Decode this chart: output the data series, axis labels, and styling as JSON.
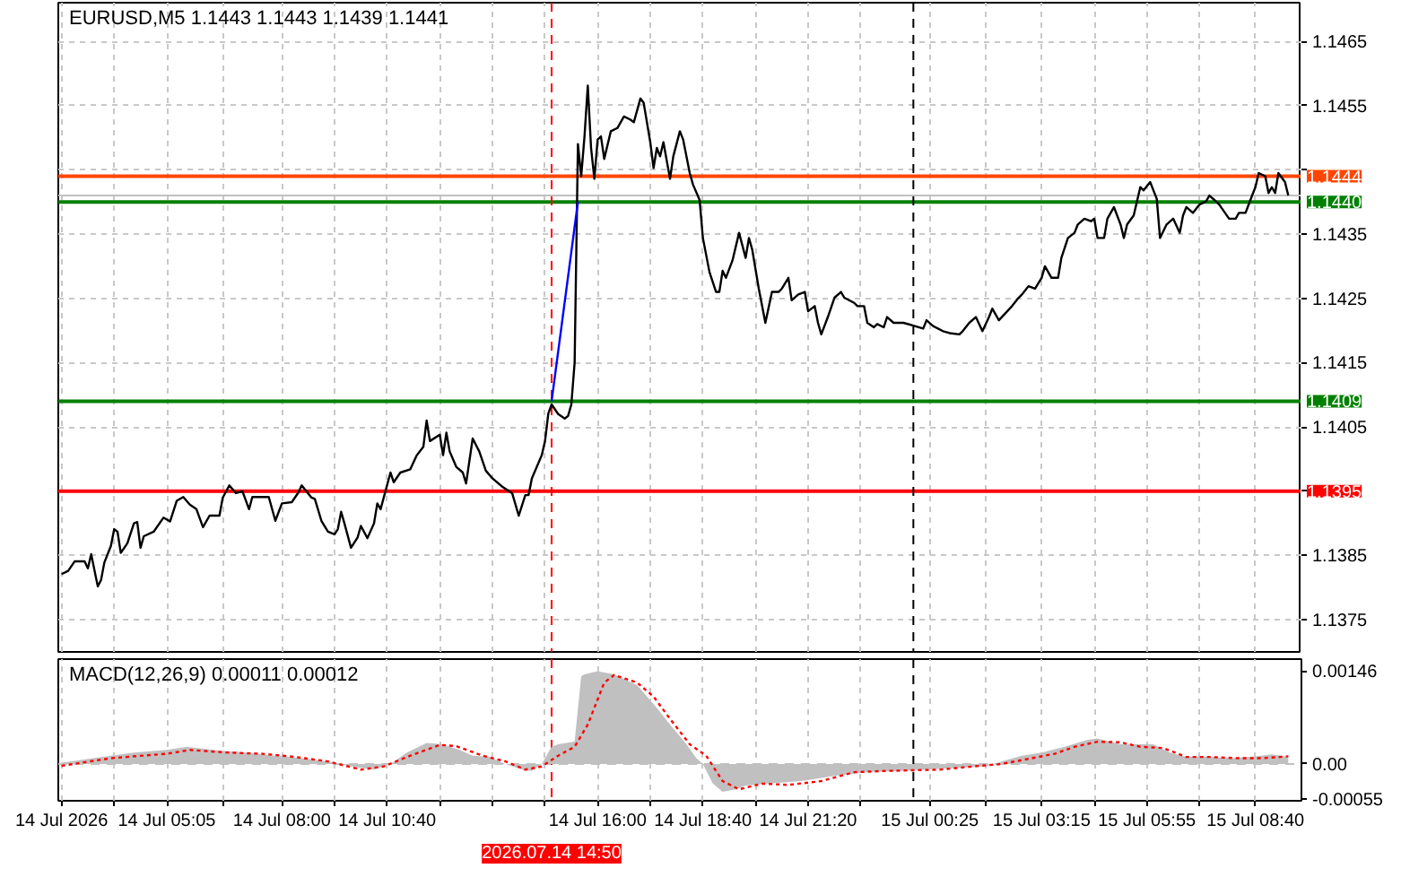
{
  "chart_data": [
    {
      "type": "line",
      "title": "EURUSD,M5 1.1443 1.1443 1.1439 1.1441",
      "series": [
        {
          "color": "#000000",
          "x": [
            "2026-07-14T02:25",
            "2026-07-14T02:35",
            "2026-07-14T02:45",
            "2026-07-14T03:00",
            "2026-07-14T03:05",
            "2026-07-14T03:10",
            "2026-07-14T03:20",
            "2026-07-14T03:25",
            "2026-07-14T03:30",
            "2026-07-14T03:40",
            "2026-07-14T03:45",
            "2026-07-14T03:50",
            "2026-07-14T03:55",
            "2026-07-14T04:05",
            "2026-07-14T04:15",
            "2026-07-14T04:20",
            "2026-07-14T04:25",
            "2026-07-14T04:30",
            "2026-07-14T04:45",
            "2026-07-14T05:00",
            "2026-07-14T05:10",
            "2026-07-14T05:20",
            "2026-07-14T05:30",
            "2026-07-14T05:40",
            "2026-07-14T05:50",
            "2026-07-14T06:00",
            "2026-07-14T06:10",
            "2026-07-14T06:25",
            "2026-07-14T06:30",
            "2026-07-14T06:40",
            "2026-07-14T06:50",
            "2026-07-14T07:00",
            "2026-07-14T07:10",
            "2026-07-14T07:15",
            "2026-07-14T07:40",
            "2026-07-14T07:50",
            "2026-07-14T08:00",
            "2026-07-14T08:15",
            "2026-07-14T08:25",
            "2026-07-14T08:30",
            "2026-07-14T08:45",
            "2026-07-14T08:50",
            "2026-07-14T09:00",
            "2026-07-14T09:10",
            "2026-07-14T09:20",
            "2026-07-14T09:25",
            "2026-07-14T09:30",
            "2026-07-14T09:35",
            "2026-07-14T09:45",
            "2026-07-14T09:55",
            "2026-07-14T10:00",
            "2026-07-14T10:10",
            "2026-07-14T10:20",
            "2026-07-14T10:25",
            "2026-07-14T10:30",
            "2026-07-14T10:45",
            "2026-07-14T10:50",
            "2026-07-14T11:00",
            "2026-07-14T11:15",
            "2026-07-14T11:25",
            "2026-07-14T11:35",
            "2026-07-14T11:40",
            "2026-07-14T11:45",
            "2026-07-14T12:00",
            "2026-07-14T12:05",
            "2026-07-14T12:10",
            "2026-07-14T12:15",
            "2026-07-14T12:25",
            "2026-07-14T12:35",
            "2026-07-14T12:40",
            "2026-07-14T12:50",
            "2026-07-14T13:00",
            "2026-07-14T13:05",
            "2026-07-14T13:10",
            "2026-07-14T13:20",
            "2026-07-14T13:35",
            "2026-07-14T13:50",
            "2026-07-14T14:00",
            "2026-07-14T14:10",
            "2026-07-14T14:15",
            "2026-07-14T14:20",
            "2026-07-14T14:35",
            "2026-07-14T14:40",
            "2026-07-14T14:45",
            "2026-07-14T14:50",
            "2026-07-14T15:00",
            "2026-07-14T15:10",
            "2026-07-14T15:15",
            "2026-07-14T15:20",
            "2026-07-14T15:25",
            "2026-07-14T15:30",
            "2026-07-14T15:35",
            "2026-07-14T15:40",
            "2026-07-14T15:45",
            "2026-07-14T15:50",
            "2026-07-14T15:55",
            "2026-07-14T16:00",
            "2026-07-14T16:05",
            "2026-07-14T16:10",
            "2026-07-14T16:20",
            "2026-07-14T16:30",
            "2026-07-14T16:40",
            "2026-07-14T16:50",
            "2026-07-14T16:55",
            "2026-07-14T17:05",
            "2026-07-14T17:10",
            "2026-07-14T17:20",
            "2026-07-14T17:25",
            "2026-07-14T17:30",
            "2026-07-14T17:35",
            "2026-07-14T17:40",
            "2026-07-14T17:50",
            "2026-07-14T17:55",
            "2026-07-14T18:05",
            "2026-07-14T18:10",
            "2026-07-14T18:20",
            "2026-07-14T18:25",
            "2026-07-14T18:35",
            "2026-07-14T18:40",
            "2026-07-14T18:50",
            "2026-07-14T19:00",
            "2026-07-14T19:05",
            "2026-07-14T19:10",
            "2026-07-14T19:15",
            "2026-07-14T19:25",
            "2026-07-14T19:35",
            "2026-07-14T19:45",
            "2026-07-14T19:50",
            "2026-07-14T19:55",
            "2026-07-14T20:05",
            "2026-07-14T20:15",
            "2026-07-14T20:25",
            "2026-07-14T20:35",
            "2026-07-14T20:40",
            "2026-07-14T20:50",
            "2026-07-14T20:55",
            "2026-07-14T21:05",
            "2026-07-14T21:15",
            "2026-07-14T21:20",
            "2026-07-14T21:30",
            "2026-07-14T21:35",
            "2026-07-14T21:40",
            "2026-07-14T21:50",
            "2026-07-14T22:00",
            "2026-07-14T22:10",
            "2026-07-14T22:15",
            "2026-07-14T22:30",
            "2026-07-14T22:35",
            "2026-07-14T22:45",
            "2026-07-14T22:50",
            "2026-07-14T23:00",
            "2026-07-14T23:05",
            "2026-07-14T23:15",
            "2026-07-14T23:20",
            "2026-07-14T23:30",
            "2026-07-14T23:45",
            "2026-07-15T00:15",
            "2026-07-15T00:20",
            "2026-07-15T00:30",
            "2026-07-15T00:45",
            "2026-07-15T00:55",
            "2026-07-15T01:10",
            "2026-07-15T01:15",
            "2026-07-15T01:25",
            "2026-07-15T01:35",
            "2026-07-15T01:45",
            "2026-07-15T01:55",
            "2026-07-15T02:00",
            "2026-07-15T02:10",
            "2026-07-15T02:30",
            "2026-07-15T02:40",
            "2026-07-15T02:45",
            "2026-07-15T02:55",
            "2026-07-15T03:05",
            "2026-07-15T03:15",
            "2026-07-15T03:20",
            "2026-07-15T03:30",
            "2026-07-15T03:40",
            "2026-07-15T03:45",
            "2026-07-15T03:55",
            "2026-07-15T04:05",
            "2026-07-15T04:10",
            "2026-07-15T04:20",
            "2026-07-15T04:30",
            "2026-07-15T04:35",
            "2026-07-15T04:40",
            "2026-07-15T04:50",
            "2026-07-15T04:55",
            "2026-07-15T05:05",
            "2026-07-15T05:15",
            "2026-07-15T05:20",
            "2026-07-15T05:25",
            "2026-07-15T05:35",
            "2026-07-15T05:40",
            "2026-07-15T05:45",
            "2026-07-15T05:50",
            "2026-07-15T06:00",
            "2026-07-15T06:10",
            "2026-07-15T06:15",
            "2026-07-15T06:25",
            "2026-07-15T06:35",
            "2026-07-15T06:45",
            "2026-07-15T06:50",
            "2026-07-15T06:55",
            "2026-07-15T07:05",
            "2026-07-15T07:15",
            "2026-07-15T07:25",
            "2026-07-15T07:30",
            "2026-07-15T07:40",
            "2026-07-15T07:45",
            "2026-07-15T08:00",
            "2026-07-15T08:10",
            "2026-07-15T08:15",
            "2026-07-15T08:25",
            "2026-07-15T08:35",
            "2026-07-15T08:40",
            "2026-07-15T08:45",
            "2026-07-15T08:55",
            "2026-07-15T09:00",
            "2026-07-15T09:05",
            "2026-07-15T09:10",
            "2026-07-15T09:15",
            "2026-07-15T09:25",
            "2026-07-15T09:30"
          ],
          "values": [
            1.13821,
            1.13826,
            1.13841,
            1.13841,
            1.1383,
            1.13852,
            1.13802,
            1.13812,
            1.13839,
            1.13865,
            1.13891,
            1.13887,
            1.13854,
            1.13869,
            1.139,
            1.13902,
            1.13862,
            1.1388,
            1.13887,
            1.13909,
            1.13903,
            1.13935,
            1.13941,
            1.13929,
            1.13922,
            1.13894,
            1.13912,
            1.13912,
            1.1394,
            1.13959,
            1.13947,
            1.1395,
            1.13922,
            1.13941,
            1.13941,
            1.13904,
            1.13931,
            1.13933,
            1.13948,
            1.13959,
            1.1394,
            1.13938,
            1.13904,
            1.13887,
            1.13883,
            1.13891,
            1.13918,
            1.139,
            1.13862,
            1.13878,
            1.13896,
            1.13877,
            1.139,
            1.13931,
            1.13922,
            1.13979,
            1.13964,
            1.13979,
            1.13984,
            1.14006,
            1.14019,
            1.1406,
            1.14028,
            1.14038,
            1.14006,
            1.14041,
            1.14012,
            1.13988,
            1.13979,
            1.13962,
            1.14032,
            1.14012,
            1.13997,
            1.13982,
            1.1397,
            1.13957,
            1.13947,
            1.13912,
            1.13944,
            1.13944,
            1.1397,
            1.14006,
            1.14028,
            1.14071,
            1.14085,
            1.1407,
            1.14063,
            1.14067,
            1.14085,
            1.1415,
            1.1449,
            1.1444,
            1.14502,
            1.14581,
            1.14484,
            1.14436,
            1.14497,
            1.14502,
            1.14467,
            1.1451,
            1.14515,
            1.14533,
            1.14528,
            1.14524,
            1.14561,
            1.14554,
            1.14493,
            1.14453,
            1.14484,
            1.14471,
            1.14493,
            1.14436,
            1.14471,
            1.1451,
            1.14497,
            1.14445,
            1.14427,
            1.14403,
            1.14344,
            1.14291,
            1.1426,
            1.1426,
            1.14293,
            1.14282,
            1.14309,
            1.14352,
            1.14313,
            1.14344,
            1.14326,
            1.14265,
            1.14212,
            1.1426,
            1.1426,
            1.14265,
            1.14282,
            1.14247,
            1.14256,
            1.1426,
            1.1423,
            1.14238,
            1.14212,
            1.14194,
            1.14221,
            1.14251,
            1.1426,
            1.14251,
            1.14243,
            1.14238,
            1.14238,
            1.14212,
            1.14205,
            1.1421,
            1.14205,
            1.14221,
            1.14212,
            1.14212,
            1.14203,
            1.14216,
            1.14207,
            1.14199,
            1.14196,
            1.14194,
            1.14199,
            1.14212,
            1.14221,
            1.14199,
            1.14221,
            1.14234,
            1.14216,
            1.14238,
            1.14251,
            1.14256,
            1.14269,
            1.14265,
            1.14282,
            1.143,
            1.14282,
            1.14282,
            1.14313,
            1.14344,
            1.14352,
            1.14365,
            1.14374,
            1.1437,
            1.14374,
            1.14344,
            1.14344,
            1.14374,
            1.14392,
            1.14365,
            1.14344,
            1.14365,
            1.14379,
            1.14401,
            1.14423,
            1.14418,
            1.14431,
            1.14405,
            1.14344,
            1.14365,
            1.14374,
            1.14352,
            1.14379,
            1.14392,
            1.14383,
            1.14396,
            1.14401,
            1.1441,
            1.14401,
            1.14396,
            1.14374,
            1.14374,
            1.14383,
            1.14383,
            1.1441,
            1.14423,
            1.14445,
            1.1444,
            1.14414,
            1.14423,
            1.14414,
            1.14445,
            1.14431,
            1.1441
          ]
        },
        {
          "type": "line",
          "color": "#0000ff",
          "x": [
            "2026-07-14T14:50",
            "2026-07-14T15:30"
          ],
          "values": [
            1.1409,
            1.144
          ]
        }
      ],
      "xlim": [
        "2026-07-14T02:20",
        "2026-07-15T09:50"
      ],
      "xticks": [
        {
          "value": "2026-07-14T02:25",
          "label": null
        },
        {
          "value": "2026-07-14T03:45",
          "label": null
        },
        {
          "value": "2026-07-14T05:05",
          "label": null
        },
        {
          "value": "2026-07-14T06:30",
          "label": null
        },
        {
          "value": "2026-07-14T08:00",
          "label": null
        },
        {
          "value": "2026-07-14T09:20",
          "label": null
        },
        {
          "value": "2026-07-14T10:40",
          "label": null
        },
        {
          "value": "2026-07-14T12:00",
          "label": null
        },
        {
          "value": "2026-07-14T13:20",
          "label": null
        },
        {
          "value": "2026-07-14T14:40",
          "label": null
        },
        {
          "value": "2026-07-14T16:00",
          "label": null
        },
        {
          "value": "2026-07-14T17:20",
          "label": null
        },
        {
          "value": "2026-07-14T18:40",
          "label": null
        },
        {
          "value": "2026-07-14T20:00",
          "label": null
        },
        {
          "value": "2026-07-14T21:20",
          "label": null
        },
        {
          "value": "2026-07-14T22:40",
          "label": null
        },
        {
          "value": "2026-07-15T00:25",
          "label": null
        },
        {
          "value": "2026-07-15T01:50",
          "label": null
        },
        {
          "value": "2026-07-15T03:15",
          "label": null
        },
        {
          "value": "2026-07-15T04:35",
          "label": null
        },
        {
          "value": "2026-07-15T05:55",
          "label": null
        },
        {
          "value": "2026-07-15T07:15",
          "label": null
        },
        {
          "value": "2026-07-15T08:40",
          "label": null
        }
      ],
      "ylim": [
        1.137,
        1.1471
      ],
      "yticks": [
        1.1375,
        1.1385,
        {
          "value": 1.1395,
          "label": null
        },
        1.1405,
        1.1415,
        1.1425,
        1.1435,
        {
          "value": 1.1445,
          "label": null
        },
        1.1455,
        1.1465
      ],
      "grid": true,
      "tick_labels": "y",
      "ref_lines": [
        {
          "axis": "y",
          "value": 1.1444,
          "label": "1.1444",
          "color": "#ff4500"
        },
        {
          "axis": "y",
          "value": 1.1441,
          "color": "#c0c0c0"
        },
        {
          "axis": "y",
          "value": 1.144,
          "label": "1.1440",
          "color": "#008000"
        },
        {
          "axis": "y",
          "value": 1.1409,
          "label": "1.1409",
          "color": "#008000"
        },
        {
          "axis": "y",
          "value": 1.1395,
          "label": "1.1395",
          "color": "#ff0000"
        },
        {
          "axis": "x",
          "value": "2026-07-14T14:50",
          "color": "#ff0000",
          "line_style": "dashed"
        },
        {
          "axis": "x",
          "value": "2026-07-15T00:00",
          "color": "#000000",
          "line_style": "dashed"
        }
      ]
    },
    {
      "type": "area",
      "title": "MACD(12,26,9) 0.00011 0.00012",
      "series": [
        {
          "color": "#c0c0c0",
          "x": [
            "2026-07-14T02:25",
            "2026-07-14T03:40",
            "2026-07-14T04:15",
            "2026-07-14T05:05",
            "2026-07-14T05:35",
            "2026-07-14T06:15",
            "2026-07-14T07:05",
            "2026-07-14T07:50",
            "2026-07-14T08:30",
            "2026-07-14T09:10",
            "2026-07-14T09:45",
            "2026-07-14T10:20",
            "2026-07-14T10:45",
            "2026-07-14T11:10",
            "2026-07-14T11:40",
            "2026-07-14T12:05",
            "2026-07-14T12:30",
            "2026-07-14T12:50",
            "2026-07-14T13:15",
            "2026-07-14T13:40",
            "2026-07-14T14:05",
            "2026-07-14T14:20",
            "2026-07-14T14:35",
            "2026-07-14T14:50",
            "2026-07-14T15:00",
            "2026-07-14T15:25",
            "2026-07-14T15:35",
            "2026-07-14T15:40",
            "2026-07-14T16:00",
            "2026-07-14T16:25",
            "2026-07-14T17:00",
            "2026-07-14T17:15",
            "2026-07-14T17:30",
            "2026-07-14T17:50",
            "2026-07-14T18:15",
            "2026-07-14T18:30",
            "2026-07-14T18:40",
            "2026-07-14T18:55",
            "2026-07-14T19:10",
            "2026-07-14T19:30",
            "2026-07-14T19:45",
            "2026-07-14T20:20",
            "2026-07-14T21:10",
            "2026-07-14T22:00",
            "2026-07-14T22:50",
            "2026-07-14T23:40",
            "2026-07-15T00:55",
            "2026-07-15T01:50",
            "2026-07-15T02:15",
            "2026-07-15T02:45",
            "2026-07-15T03:15",
            "2026-07-15T03:50",
            "2026-07-15T04:25",
            "2026-07-15T04:40",
            "2026-07-15T05:15",
            "2026-07-15T05:45",
            "2026-07-15T06:05",
            "2026-07-15T06:30",
            "2026-07-15T06:55",
            "2026-07-15T07:30",
            "2026-07-15T08:05",
            "2026-07-15T08:40",
            "2026-07-15T09:05",
            "2026-07-15T09:30"
          ],
          "values": [
            2e-05,
            0.00013,
            0.00018,
            0.00022,
            0.00027,
            0.00022,
            0.00018,
            0.00013,
            9e-05,
            4e-05,
            -4e-05,
            -9e-05,
            0,
            0.00018,
            0.00033,
            0.00031,
            0.00022,
            0.00013,
            0.00011,
            0,
            -9e-05,
            -0.00011,
            0,
            0.00027,
            0.00031,
            0.00035,
            0.00138,
            0.00141,
            0.00146,
            0.00141,
            0.00124,
            0.00106,
            0.00088,
            0.00062,
            0.00031,
            9e-05,
            0,
            -0.00031,
            -0.00044,
            -0.0004,
            -0.00034,
            -0.00031,
            -0.00027,
            -0.00019,
            -0.00013,
            -0.00011,
            -7e-05,
            -4e-05,
            4e-05,
            0.00013,
            0.00018,
            0.00027,
            0.00038,
            0.0004,
            0.00031,
            0.00031,
            0.00031,
            0.00018,
            0.00011,
            0.00011,
            9e-05,
            0.00012,
            0.00015,
            0.00011
          ]
        },
        {
          "type": "line",
          "color": "#ff0000",
          "line_style": "dotted",
          "x": [
            "2026-07-14T02:25",
            "2026-07-14T03:40",
            "2026-07-14T04:15",
            "2026-07-14T05:05",
            "2026-07-14T05:40",
            "2026-07-14T06:35",
            "2026-07-14T07:30",
            "2026-07-14T08:20",
            "2026-07-14T09:10",
            "2026-07-14T10:00",
            "2026-07-14T10:35",
            "2026-07-14T11:10",
            "2026-07-14T12:00",
            "2026-07-14T12:25",
            "2026-07-14T13:05",
            "2026-07-14T13:40",
            "2026-07-14T14:10",
            "2026-07-14T14:35",
            "2026-07-14T15:00",
            "2026-07-14T15:25",
            "2026-07-14T15:45",
            "2026-07-14T16:10",
            "2026-07-14T16:25",
            "2026-07-14T17:00",
            "2026-07-14T17:25",
            "2026-07-14T17:50",
            "2026-07-14T18:20",
            "2026-07-14T18:45",
            "2026-07-14T19:10",
            "2026-07-14T19:35",
            "2026-07-14T20:10",
            "2026-07-14T20:50",
            "2026-07-14T21:40",
            "2026-07-14T22:30",
            "2026-07-14T23:20",
            "2026-07-15T00:40",
            "2026-07-15T01:30",
            "2026-07-15T02:15",
            "2026-07-15T03:00",
            "2026-07-15T03:35",
            "2026-07-15T04:05",
            "2026-07-15T04:40",
            "2026-07-15T05:15",
            "2026-07-15T05:45",
            "2026-07-15T06:20",
            "2026-07-15T06:55",
            "2026-07-15T07:30",
            "2026-07-15T08:15",
            "2026-07-15T08:50",
            "2026-07-15T09:30"
          ],
          "values": [
            -3e-05,
            9e-05,
            0.00012,
            0.00016,
            0.00022,
            0.00018,
            0.00016,
            0.00011,
            4e-05,
            -9e-05,
            -4e-05,
            0.00011,
            0.0003,
            0.00028,
            0.00013,
            4e-05,
            -9e-05,
            -4e-05,
            0.00013,
            0.00027,
            0.00062,
            0.00128,
            0.0014,
            0.00128,
            0.00106,
            0.00071,
            0.00031,
            0.00013,
            -0.00027,
            -0.0004,
            -0.00031,
            -0.00033,
            -0.00027,
            -0.00013,
            -0.00011,
            -9e-05,
            -4e-05,
            0,
            9e-05,
            0.00016,
            0.00027,
            0.00035,
            0.00034,
            0.00027,
            0.00025,
            0.00011,
            0.00011,
            9e-05,
            9e-05,
            0.00012
          ]
        }
      ],
      "xlim": [
        "2026-07-14T02:20",
        "2026-07-15T09:50"
      ],
      "xticks": [
        {
          "value": "2026-07-14T02:25",
          "label": "14 Jul 2026"
        },
        {
          "value": "2026-07-14T03:45",
          "label": null
        },
        {
          "value": "2026-07-14T05:05",
          "label": "14 Jul 05:05"
        },
        {
          "value": "2026-07-14T06:30",
          "label": null
        },
        {
          "value": "2026-07-14T08:00",
          "label": "14 Jul 08:00"
        },
        {
          "value": "2026-07-14T09:20",
          "label": null
        },
        {
          "value": "2026-07-14T10:40",
          "label": "14 Jul 10:40"
        },
        {
          "value": "2026-07-14T12:00",
          "label": null
        },
        {
          "value": "2026-07-14T13:20",
          "label": null
        },
        {
          "value": "2026-07-14T14:40",
          "label": null
        },
        {
          "value": "2026-07-14T16:00",
          "label": "14 Jul 16:00"
        },
        {
          "value": "2026-07-14T17:20",
          "label": null
        },
        {
          "value": "2026-07-14T18:40",
          "label": "14 Jul 18:40"
        },
        {
          "value": "2026-07-14T20:00",
          "label": null
        },
        {
          "value": "2026-07-14T21:20",
          "label": "14 Jul 21:20"
        },
        {
          "value": "2026-07-14T22:40",
          "label": null
        },
        {
          "value": "2026-07-15T00:25",
          "label": "15 Jul 00:25"
        },
        {
          "value": "2026-07-15T01:50",
          "label": null
        },
        {
          "value": "2026-07-15T03:15",
          "label": "15 Jul 03:15"
        },
        {
          "value": "2026-07-15T04:35",
          "label": null
        },
        {
          "value": "2026-07-15T05:55",
          "label": "15 Jul 05:55"
        },
        {
          "value": "2026-07-15T07:15",
          "label": null
        },
        {
          "value": "2026-07-15T08:40",
          "label": "15 Jul 08:40"
        }
      ],
      "ylim": [
        -0.00058,
        0.00165
      ],
      "yticks": [
        0.00146,
        {
          "value": 0,
          "label": "0.00"
        },
        -0.00055
      ],
      "grid": "x",
      "ref_lines": [
        {
          "axis": "y",
          "value": 0,
          "color": "#c0c0c0",
          "line_style": "dashed"
        },
        {
          "axis": "x",
          "value": "2026-07-14T14:50",
          "label": "2026.07.14 14:50",
          "color": "#ff0000",
          "line_style": "dashed"
        },
        {
          "axis": "x",
          "value": "2026-07-15T00:00",
          "color": "#000000",
          "line_style": "dashed"
        }
      ]
    }
  ]
}
